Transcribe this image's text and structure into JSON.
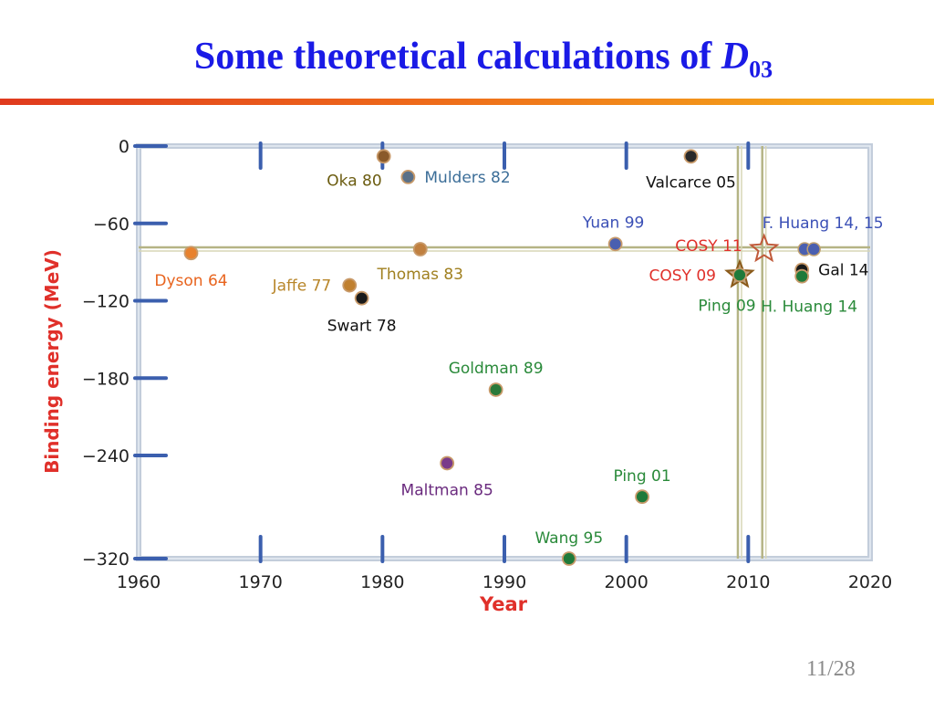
{
  "slide": {
    "title_text": "Some theoretical calculations of ",
    "title_symbol": "D",
    "title_subscript": "03",
    "page": "11/28"
  },
  "colors": {
    "title": "#1a1ae6",
    "rule": "#ee6a1a",
    "frame": "#c3cddb",
    "axis_tick": "#3b5fae",
    "axis_label": "#e0302a",
    "ref_line": "#b5b485"
  },
  "chart_data": {
    "type": "scatter",
    "title": "",
    "xlabel": "Year",
    "ylabel": "Binding energy (MeV)",
    "xlim": [
      1960,
      2020
    ],
    "ylim": [
      -320,
      0
    ],
    "xticks": [
      "1960",
      "1970",
      "1980",
      "1990",
      "2000",
      "2010",
      "2020"
    ],
    "yticks": [
      "0",
      "−60",
      "−120",
      "−180",
      "−240",
      "−320"
    ],
    "grid": false,
    "reference_lines": {
      "horizontal_y": -80,
      "vertical_x": [
        2009.3,
        2011.3
      ]
    },
    "points": [
      {
        "label": "Dyson 64",
        "x": 1964.3,
        "y": -83,
        "color": "#e8822e",
        "label_color": "#e8641e",
        "marker": "circle"
      },
      {
        "label": "Jaffe 77",
        "x": 1977.3,
        "y": -108,
        "color": "#c08030",
        "label_color": "#b8862a",
        "marker": "circle"
      },
      {
        "label": "Swart 78",
        "x": 1978.3,
        "y": -118,
        "color": "#1a1a1a",
        "label_color": "#111111",
        "marker": "circle"
      },
      {
        "label": "Oka 80",
        "x": 1980.1,
        "y": -8,
        "color": "#8a5a2a",
        "label_color": "#6b5c10",
        "marker": "circle"
      },
      {
        "label": "Mulders 82",
        "x": 1982.1,
        "y": -24,
        "color": "#5a7088",
        "label_color": "#3c6e98",
        "marker": "circle"
      },
      {
        "label": "Thomas 83",
        "x": 1983.1,
        "y": -80,
        "color": "#c08040",
        "label_color": "#a08020",
        "marker": "circle"
      },
      {
        "label": "Maltman 85",
        "x": 1985.3,
        "y": -246,
        "color": "#7a3a8a",
        "label_color": "#6a2a7e",
        "marker": "circle"
      },
      {
        "label": "Goldman 89",
        "x": 1989.3,
        "y": -189,
        "color": "#2a7a3a",
        "label_color": "#2a8a3a",
        "marker": "circle"
      },
      {
        "label": "Wang 95",
        "x": 1995.3,
        "y": -320,
        "color": "#1f7a3a",
        "label_color": "#2a8a3a",
        "marker": "circle"
      },
      {
        "label": "Yuan 99",
        "x": 1999.1,
        "y": -76,
        "color": "#4a5fb0",
        "label_color": "#3b50b6",
        "marker": "circle"
      },
      {
        "label": "Ping 01",
        "x": 2001.3,
        "y": -272,
        "color": "#1f7a3a",
        "label_color": "#2a8a3a",
        "marker": "circle"
      },
      {
        "label": "Valcarce 05",
        "x": 2005.3,
        "y": -8,
        "color": "#2a2a2a",
        "label_color": "#111111",
        "marker": "circle"
      },
      {
        "label": "COSY 09",
        "x": 2009.3,
        "y": -100,
        "color": "#8a5a1a",
        "label_color": "#e0302a",
        "marker": "star"
      },
      {
        "label": "Ping 09",
        "x": 2009.3,
        "y": -100,
        "color": "#1f7a3a",
        "label_color": "#2a8a3a",
        "marker": "circle"
      },
      {
        "label": "COSY 11",
        "x": 2011.3,
        "y": -80,
        "color": "#c05a3a",
        "label_color": "#e0302a",
        "marker": "star-open"
      },
      {
        "label": "F. Huang 14, 15",
        "x": 2015.0,
        "y": -80,
        "color": "#4a5fb0",
        "label_color": "#3b50b6",
        "marker": "circle-pair"
      },
      {
        "label": "Gal 14",
        "x": 2014.4,
        "y": -96,
        "color": "#1a1a1a",
        "label_color": "#111111",
        "marker": "circle"
      },
      {
        "label": "H. Huang 14",
        "x": 2014.4,
        "y": -101,
        "color": "#1f7a3a",
        "label_color": "#2a8a3a",
        "marker": "circle"
      }
    ]
  }
}
